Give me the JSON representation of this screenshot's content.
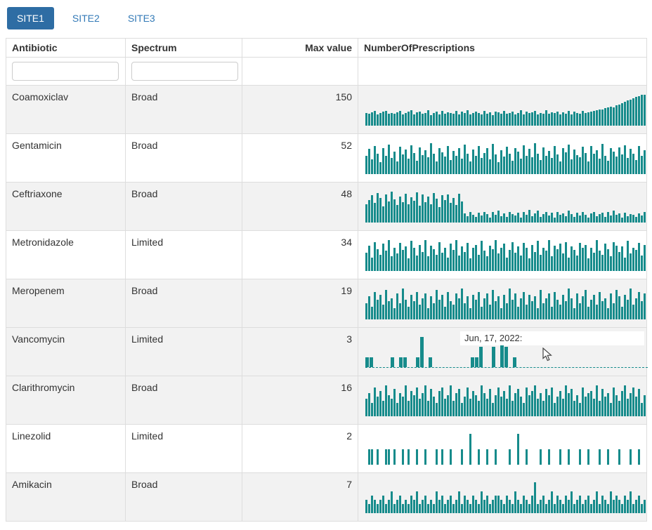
{
  "tabs": [
    {
      "label": "SITE1",
      "active": true
    },
    {
      "label": "SITE2",
      "active": false
    },
    {
      "label": "SITE3",
      "active": false
    }
  ],
  "colors": {
    "sparkline": "#168b8b",
    "active_tab_bg": "#2e6da4",
    "tab_text": "#337ab7"
  },
  "tooltip": {
    "text": "Jun, 17, 2022:",
    "row_index": 5
  },
  "table": {
    "columns": [
      "Antibiotic",
      "Spectrum",
      "Max value",
      "NumberOfPrescriptions"
    ],
    "rows": [
      {
        "antibiotic": "Coamoxiclav",
        "spectrum": "Broad",
        "max": 150,
        "spark": [
          62,
          58,
          65,
          70,
          55,
          60,
          68,
          72,
          57,
          63,
          59,
          66,
          71,
          54,
          61,
          67,
          73,
          56,
          64,
          69,
          58,
          62,
          76,
          53,
          60,
          68,
          55,
          71,
          59,
          65,
          63,
          57,
          70,
          54,
          67,
          61,
          74,
          56,
          62,
          68,
          60,
          55,
          72,
          58,
          66,
          53,
          69,
          64,
          57,
          71,
          59,
          63,
          68,
          55,
          61,
          73,
          56,
          67,
          60,
          65,
          70,
          54,
          62,
          58,
          75,
          57,
          66,
          61,
          69,
          55,
          64,
          59,
          72,
          56,
          68,
          62,
          57,
          70,
          60,
          65,
          67,
          72,
          76,
          80,
          78,
          84,
          88,
          92,
          90,
          98,
          102,
          108,
          115,
          122,
          128,
          134,
          140,
          144,
          148,
          150
        ]
      },
      {
        "antibiotic": "Gentamicin",
        "spectrum": "Broad",
        "max": 52,
        "spark": [
          30,
          42,
          25,
          48,
          35,
          20,
          44,
          31,
          50,
          27,
          38,
          22,
          46,
          33,
          41,
          26,
          49,
          36,
          23,
          45,
          32,
          40,
          28,
          52,
          34,
          21,
          43,
          37,
          29,
          47,
          24,
          39,
          31,
          44,
          26,
          50,
          35,
          22,
          41,
          30,
          48,
          27,
          36,
          43,
          25,
          51,
          33,
          20,
          40,
          29,
          46,
          34,
          23,
          44,
          38,
          26,
          49,
          31,
          42,
          28,
          52,
          35,
          24,
          45,
          30,
          39,
          27,
          47,
          33,
          21,
          43,
          37,
          50,
          25,
          41,
          32,
          28,
          46,
          36,
          22,
          48,
          34,
          40,
          26,
          51,
          30,
          23,
          44,
          38,
          29,
          45,
          33,
          49,
          27,
          42,
          35,
          24,
          47,
          31,
          40
        ]
      },
      {
        "antibiotic": "Ceftriaxone",
        "spectrum": "Broad",
        "max": 48,
        "spark": [
          28,
          35,
          42,
          30,
          46,
          38,
          25,
          44,
          33,
          48,
          36,
          27,
          41,
          31,
          45,
          29,
          39,
          34,
          47,
          26,
          43,
          32,
          40,
          28,
          46,
          37,
          24,
          42,
          35,
          44,
          30,
          38,
          27,
          45,
          33,
          14,
          10,
          16,
          12,
          9,
          15,
          11,
          17,
          13,
          8,
          16,
          12,
          18,
          10,
          14,
          9,
          17,
          13,
          11,
          15,
          8,
          16,
          12,
          19,
          10,
          14,
          18,
          9,
          13,
          16,
          11,
          15,
          8,
          17,
          12,
          14,
          10,
          18,
          13,
          9,
          15,
          11,
          16,
          12,
          8,
          14,
          17,
          10,
          13,
          15,
          9,
          16,
          11,
          18,
          12,
          14,
          8,
          15,
          10,
          13,
          12,
          9,
          14,
          11,
          16
        ]
      },
      {
        "antibiotic": "Metronidazole",
        "spectrum": "Limited",
        "max": 34,
        "spark": [
          20,
          28,
          15,
          32,
          24,
          18,
          30,
          22,
          34,
          16,
          26,
          19,
          31,
          23,
          27,
          14,
          33,
          25,
          17,
          29,
          21,
          34,
          16,
          28,
          24,
          18,
          32,
          20,
          26,
          15,
          30,
          23,
          34,
          17,
          27,
          21,
          31,
          14,
          25,
          29,
          18,
          33,
          22,
          16,
          28,
          24,
          34,
          19,
          26,
          30,
          15,
          23,
          32,
          20,
          27,
          17,
          31,
          25,
          14,
          29,
          21,
          33,
          18,
          26,
          22,
          34,
          16,
          28,
          24,
          30,
          19,
          32,
          15,
          27,
          23,
          17,
          31,
          25,
          29,
          14,
          26,
          20,
          34,
          22,
          18,
          30,
          24,
          16,
          32,
          28,
          21,
          27,
          15,
          33,
          19,
          25,
          23,
          31,
          17,
          29
        ]
      },
      {
        "antibiotic": "Meropenem",
        "spectrum": "Broad",
        "max": 19,
        "spark": [
          10,
          14,
          8,
          17,
          12,
          15,
          9,
          18,
          11,
          13,
          7,
          16,
          10,
          19,
          12,
          8,
          15,
          11,
          17,
          9,
          13,
          16,
          7,
          14,
          10,
          18,
          12,
          15,
          8,
          17,
          11,
          9,
          16,
          13,
          19,
          10,
          14,
          7,
          15,
          12,
          17,
          8,
          13,
          16,
          9,
          18,
          11,
          14,
          7,
          15,
          10,
          19,
          12,
          16,
          8,
          13,
          17,
          9,
          15,
          11,
          14,
          7,
          18,
          10,
          13,
          16,
          8,
          17,
          12,
          9,
          15,
          11,
          19,
          13,
          7,
          16,
          10,
          14,
          18,
          8,
          12,
          15,
          9,
          17,
          11,
          13,
          7,
          16,
          10,
          18,
          14,
          8,
          15,
          12,
          19,
          9,
          13,
          17,
          11,
          16
        ]
      },
      {
        "antibiotic": "Vancomycin",
        "spectrum": "Limited",
        "max": 3,
        "hovered": true,
        "baseline_dashed": true,
        "spark": [
          1,
          1,
          0,
          0,
          0,
          0,
          1,
          0,
          1,
          1,
          0,
          0,
          1,
          3,
          0,
          1,
          0,
          0,
          0,
          0,
          0,
          0,
          0,
          0,
          0,
          1,
          1,
          2,
          0,
          0,
          2,
          0,
          3,
          2,
          0,
          1,
          0,
          0,
          0,
          0,
          0,
          0,
          0,
          0,
          0,
          0,
          0,
          0,
          0,
          0,
          0,
          0,
          0,
          0,
          0,
          0,
          0,
          0,
          0,
          0
        ]
      },
      {
        "antibiotic": "Clarithromycin",
        "spectrum": "Broad",
        "max": 16,
        "spark": [
          9,
          12,
          7,
          15,
          10,
          13,
          8,
          16,
          11,
          9,
          14,
          7,
          12,
          10,
          16,
          8,
          13,
          11,
          15,
          9,
          12,
          16,
          8,
          14,
          10,
          7,
          13,
          15,
          9,
          11,
          16,
          8,
          12,
          14,
          7,
          10,
          15,
          9,
          13,
          11,
          8,
          16,
          12,
          9,
          14,
          7,
          11,
          15,
          10,
          13,
          9,
          16,
          8,
          12,
          14,
          10,
          7,
          15,
          11,
          13,
          16,
          9,
          12,
          8,
          14,
          11,
          15,
          7,
          10,
          13,
          9,
          16,
          12,
          14,
          8,
          11,
          7,
          15,
          10,
          12,
          13,
          9,
          16,
          8,
          14,
          10,
          12,
          7,
          15,
          11,
          8,
          13,
          16,
          9,
          12,
          15,
          10,
          14,
          7,
          11
        ]
      },
      {
        "antibiotic": "Linezolid",
        "spectrum": "Limited",
        "max": 2,
        "spark": [
          0,
          1,
          1,
          0,
          1,
          0,
          0,
          1,
          1,
          0,
          1,
          0,
          0,
          1,
          0,
          1,
          0,
          0,
          1,
          0,
          0,
          1,
          0,
          0,
          0,
          1,
          0,
          1,
          0,
          0,
          1,
          0,
          0,
          0,
          1,
          0,
          0,
          2,
          0,
          0,
          1,
          0,
          0,
          1,
          0,
          0,
          1,
          0,
          0,
          0,
          0,
          1,
          0,
          0,
          2,
          0,
          0,
          1,
          0,
          0,
          0,
          0,
          1,
          0,
          0,
          1,
          0,
          0,
          0,
          1,
          0,
          0,
          1,
          0,
          0,
          0,
          1,
          0,
          0,
          1,
          0,
          0,
          0,
          1,
          0,
          0,
          1,
          0,
          0,
          0,
          1,
          0,
          0,
          0,
          1,
          0,
          0,
          1,
          0,
          0
        ]
      },
      {
        "antibiotic": "Amikacin",
        "spectrum": "Broad",
        "max": 7,
        "spark": [
          3,
          2,
          4,
          3,
          2,
          3,
          4,
          2,
          3,
          5,
          2,
          3,
          4,
          2,
          3,
          2,
          4,
          3,
          5,
          2,
          3,
          4,
          2,
          3,
          2,
          5,
          3,
          4,
          2,
          3,
          4,
          2,
          3,
          5,
          2,
          4,
          3,
          2,
          4,
          3,
          2,
          5,
          3,
          4,
          2,
          3,
          4,
          4,
          3,
          2,
          4,
          3,
          2,
          5,
          3,
          2,
          4,
          3,
          2,
          4,
          7,
          2,
          3,
          4,
          2,
          3,
          5,
          2,
          4,
          3,
          2,
          4,
          3,
          5,
          2,
          3,
          4,
          2,
          3,
          4,
          2,
          3,
          5,
          2,
          4,
          3,
          2,
          5,
          3,
          4,
          3,
          2,
          4,
          3,
          5,
          2,
          3,
          4,
          2,
          3
        ]
      }
    ]
  }
}
